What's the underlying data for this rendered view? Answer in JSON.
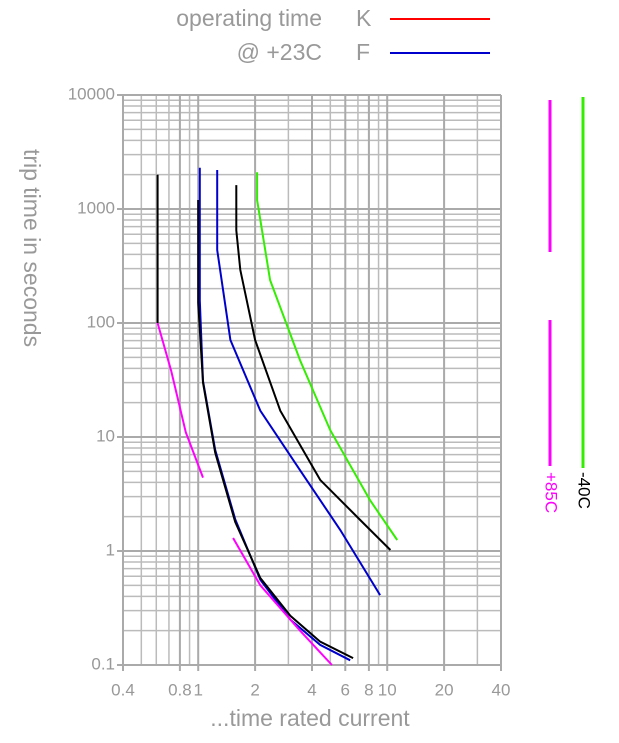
{
  "chart_data": {
    "type": "line",
    "y_label": "trip time in seconds",
    "x_label": "...time rated current",
    "legend_title": [
      "operating time",
      "@ +23C"
    ],
    "legend": [
      {
        "label": "K",
        "color": "#ff0000"
      },
      {
        "label": "F",
        "color": "#0000cc"
      }
    ],
    "side_bars": [
      {
        "label": "+85C",
        "color": "#ff00ff"
      },
      {
        "label": "-40C",
        "color": "#33ee00"
      }
    ],
    "log_x": true,
    "log_y": true,
    "grid": true,
    "xlim": [
      0.4,
      40
    ],
    "xticks": [
      0.4,
      0.8,
      1,
      2,
      4,
      6,
      8,
      10,
      20,
      40
    ],
    "ylim": [
      0.1,
      10000
    ],
    "yticks": [
      0.1,
      1,
      10,
      100,
      1000,
      10000
    ],
    "curves": [
      {
        "color": "#000000",
        "x": [
          0.61,
          0.61
        ],
        "values": [
          2000,
          100
        ]
      },
      {
        "color": "#ff00ff",
        "x": [
          0.61,
          0.72,
          0.86,
          1.06
        ],
        "values": [
          100,
          38,
          11,
          4.4
        ]
      },
      {
        "color": "#0000cc",
        "x": [
          1.02,
          1.02,
          1.06,
          1.23,
          1.57,
          2.13,
          3.07,
          4.42,
          6.37
        ],
        "values": [
          2300,
          158,
          31,
          7.7,
          1.9,
          0.56,
          0.25,
          0.15,
          0.11
        ]
      },
      {
        "color": "#000000",
        "x": [
          1,
          1,
          1.06,
          1.23,
          1.57,
          2.13,
          3.07,
          4.42,
          6.6
        ],
        "values": [
          1200,
          150,
          30,
          7.3,
          1.8,
          0.58,
          0.27,
          0.16,
          0.115
        ]
      },
      {
        "color": "#0000cc",
        "x": [
          1.26,
          1.26,
          1.48,
          2.13,
          3.46,
          5.64,
          9.17
        ],
        "values": [
          2200,
          437,
          71,
          17,
          5.1,
          1.53,
          0.41
        ]
      },
      {
        "color": "#000000",
        "x": [
          1.59,
          1.59,
          1.67,
          2.0,
          2.72,
          4.42,
          7.2,
          10.4
        ],
        "values": [
          1620,
          650,
          292,
          71,
          17,
          4.2,
          1.87,
          1.02
        ]
      },
      {
        "color": "#33ee00",
        "x": [
          2.05,
          2.05,
          2.4,
          3.46,
          4.99,
          8.1,
          11.3
        ],
        "values": [
          2100,
          1200,
          238,
          47,
          11.5,
          2.8,
          1.25
        ]
      },
      {
        "color": "#ff00ff",
        "x": [
          1.53,
          2.13,
          3.46,
          5.1
        ],
        "values": [
          1.3,
          0.5,
          0.2,
          0.1
        ]
      }
    ]
  }
}
